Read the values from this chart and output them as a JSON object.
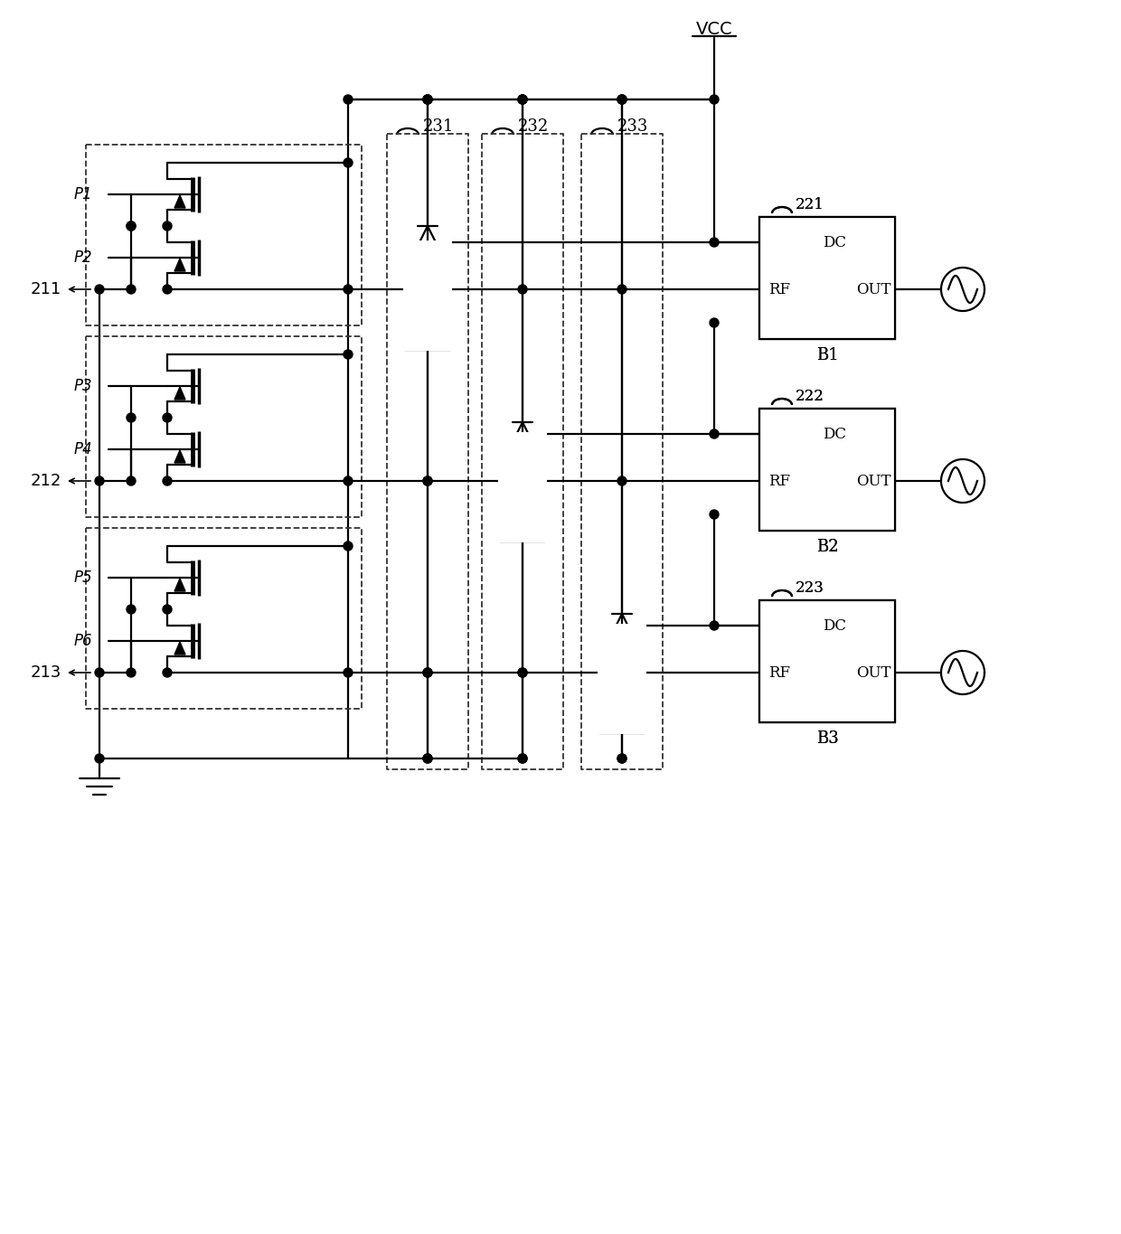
{
  "fig_width": 12.4,
  "fig_height": 13.65,
  "bg_color": "#ffffff",
  "lc": "#000000",
  "lw": 1.6,
  "dr": 5.0,
  "vcc_label": "VCC",
  "labels_211": "211",
  "labels_212": "212",
  "labels_213": "213",
  "labels_231": "231",
  "labels_232": "232",
  "labels_233": "233",
  "labels_221": "221",
  "labels_222": "222",
  "labels_223": "223",
  "labels_b1": "B1",
  "labels_b2": "B2",
  "labels_b3": "B3",
  "labels_p1": "P1",
  "labels_p2": "P2",
  "labels_p3": "P3",
  "labels_p4": "P4",
  "labels_p5": "P5",
  "labels_p6": "P6",
  "labels_dc": "DC",
  "labels_rf": "RF",
  "labels_out": "OUT"
}
